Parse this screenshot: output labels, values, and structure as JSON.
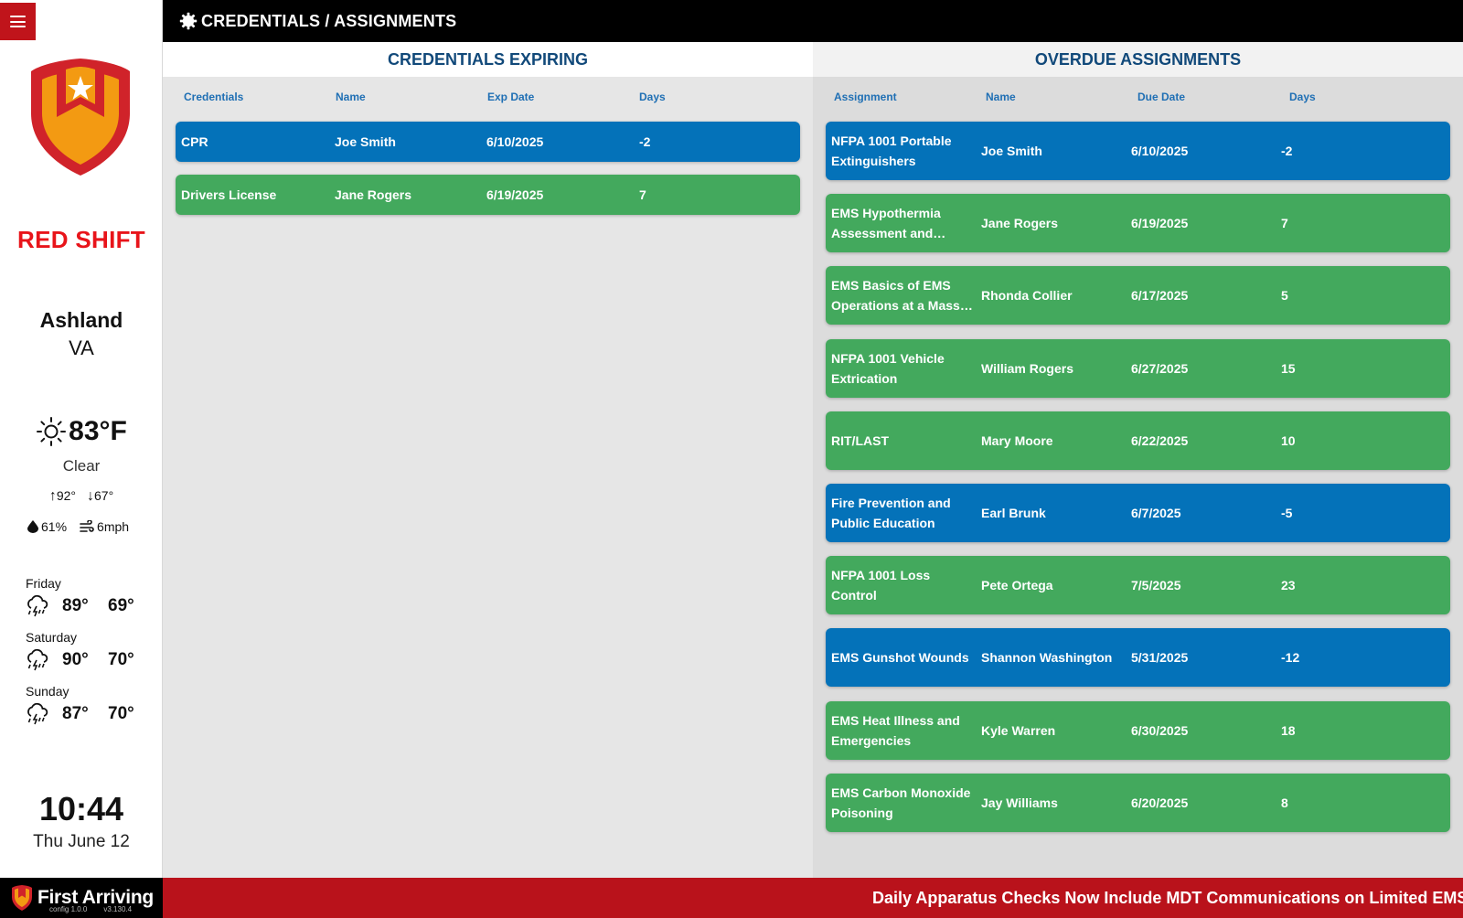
{
  "header": {
    "title": "CREDENTIALS / ASSIGNMENTS",
    "icon": "gear-icon"
  },
  "sidebar": {
    "shift_name": "RED SHIFT",
    "city": "Ashland",
    "state": "VA",
    "weather": {
      "temp": "83°F",
      "condition": "Clear",
      "high": "92°",
      "low": "67°",
      "humidity": "61%",
      "wind": "6mph"
    },
    "forecast": [
      {
        "day": "Friday",
        "high": "89°",
        "low": "69°"
      },
      {
        "day": "Saturday",
        "high": "90°",
        "low": "70°"
      },
      {
        "day": "Sunday",
        "high": "87°",
        "low": "70°"
      }
    ],
    "time": "10:44",
    "date": "Thu June 12"
  },
  "credentials": {
    "title": "CREDENTIALS EXPIRING",
    "columns": [
      "Credentials",
      "Name",
      "Exp Date",
      "Days"
    ],
    "rows": [
      {
        "item": "CPR",
        "name": "Joe Smith",
        "date": "6/10/2025",
        "days": "-2",
        "status": "blue"
      },
      {
        "item": "Drivers License",
        "name": "Jane Rogers",
        "date": "6/19/2025",
        "days": "7",
        "status": "green"
      }
    ]
  },
  "assignments": {
    "title": "OVERDUE ASSIGNMENTS",
    "columns": [
      "Assignment",
      "Name",
      "Due Date",
      "Days"
    ],
    "rows": [
      {
        "item": "NFPA 1001 Portable Extinguishers",
        "name": "Joe Smith",
        "date": "6/10/2025",
        "days": "-2",
        "status": "blue"
      },
      {
        "item": "EMS Hypothermia Assessment and…",
        "name": "Jane Rogers",
        "date": "6/19/2025",
        "days": "7",
        "status": "green"
      },
      {
        "item": "EMS Basics of EMS Operations at a Mass…",
        "name": "Rhonda Collier",
        "date": "6/17/2025",
        "days": "5",
        "status": "green"
      },
      {
        "item": "NFPA 1001 Vehicle Extrication",
        "name": "William Rogers",
        "date": "6/27/2025",
        "days": "15",
        "status": "green"
      },
      {
        "item": "RIT/LAST",
        "name": "Mary Moore",
        "date": "6/22/2025",
        "days": "10",
        "status": "green"
      },
      {
        "item": "Fire Prevention and Public Education",
        "name": "Earl Brunk",
        "date": "6/7/2025",
        "days": "-5",
        "status": "blue"
      },
      {
        "item": "NFPA 1001 Loss Control",
        "name": "Pete Ortega",
        "date": "7/5/2025",
        "days": "23",
        "status": "green"
      },
      {
        "item": "EMS Gunshot Wounds",
        "name": "Shannon Washington",
        "date": "5/31/2025",
        "days": "-12",
        "status": "blue"
      },
      {
        "item": "EMS Heat Illness and Emergencies",
        "name": "Kyle Warren",
        "date": "6/30/2025",
        "days": "18",
        "status": "green"
      },
      {
        "item": "EMS Carbon Monoxide Poisoning",
        "name": "Jay Williams",
        "date": "6/20/2025",
        "days": "8",
        "status": "green"
      }
    ]
  },
  "footer": {
    "brand": "First Arriving",
    "config_version": "config 1.0.0",
    "app_version": "v3.130.4",
    "ticker": "Daily Apparatus Checks Now Include MDT Communications on Limited EMS Resources"
  },
  "colors": {
    "blue": "#0472b9",
    "green": "#43a95d",
    "red": "#c0141b",
    "navy": "#11497a"
  }
}
